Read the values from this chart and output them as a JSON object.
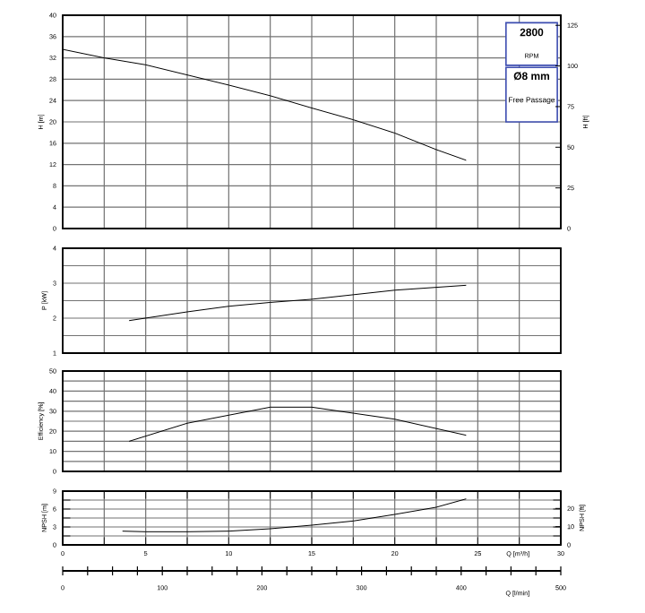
{
  "chart_data": [
    {
      "type": "line",
      "ylabel": "H [m]",
      "y2label": "H [ft]",
      "xlim": [
        0,
        30
      ],
      "ylim": [
        0,
        40
      ],
      "y2lim": [
        0,
        131.2
      ],
      "grid": true,
      "tick_labels": "y",
      "xticks": [
        {
          "value": 0,
          "label": null
        },
        {
          "value": 2.5,
          "label": null
        },
        {
          "value": 5,
          "label": null
        },
        {
          "value": 7.5,
          "label": null
        },
        {
          "value": 10,
          "label": null
        },
        {
          "value": 12.5,
          "label": null
        },
        {
          "value": 15,
          "label": null
        },
        {
          "value": 17.5,
          "label": null
        },
        {
          "value": 20,
          "label": null
        },
        {
          "value": 22.5,
          "label": null
        },
        {
          "value": 25,
          "label": null
        },
        {
          "value": 27.5,
          "label": null
        },
        {
          "value": 30,
          "label": null
        }
      ],
      "yticks": [
        0,
        4,
        8,
        12,
        16,
        20,
        24,
        28,
        32,
        36,
        40
      ],
      "y2ticks": [
        0,
        25,
        50,
        75,
        100,
        125
      ],
      "annotations": [
        "2800",
        "RPM",
        "Ø8 mm",
        "Free Passage"
      ],
      "series": [
        {
          "color": "#000000",
          "x": [
            0,
            2.5,
            5,
            7.5,
            10,
            12.5,
            15,
            17.5,
            20,
            22.5,
            24.3
          ],
          "values": [
            33.6,
            32.0,
            30.7,
            28.8,
            26.9,
            24.9,
            22.6,
            20.4,
            17.9,
            14.8,
            12.8
          ]
        }
      ]
    },
    {
      "type": "line",
      "ylabel": "P [kW]",
      "xlim": [
        0,
        30
      ],
      "ylim": [
        1,
        4
      ],
      "grid": true,
      "tick_labels": "y",
      "xticks": [
        {
          "value": 0,
          "label": null
        },
        {
          "value": 2.5,
          "label": null
        },
        {
          "value": 5,
          "label": null
        },
        {
          "value": 7.5,
          "label": null
        },
        {
          "value": 10,
          "label": null
        },
        {
          "value": 12.5,
          "label": null
        },
        {
          "value": 15,
          "label": null
        },
        {
          "value": 17.5,
          "label": null
        },
        {
          "value": 20,
          "label": null
        },
        {
          "value": 22.5,
          "label": null
        },
        {
          "value": 25,
          "label": null
        },
        {
          "value": 27.5,
          "label": null
        },
        {
          "value": 30,
          "label": null
        }
      ],
      "yticks": [
        1,
        {
          "value": 1.5,
          "label": null
        },
        2,
        {
          "value": 2.5,
          "label": null
        },
        3,
        {
          "value": 3.5,
          "label": null
        },
        4
      ],
      "series": [
        {
          "color": "#000000",
          "x": [
            4,
            7.5,
            10,
            12.5,
            15,
            17.5,
            20,
            24.3
          ],
          "values": [
            1.93,
            2.18,
            2.34,
            2.45,
            2.54,
            2.67,
            2.8,
            2.94
          ]
        }
      ]
    },
    {
      "type": "line",
      "ylabel": "Efficiency [%]",
      "xlim": [
        0,
        30
      ],
      "ylim": [
        0,
        50
      ],
      "grid": true,
      "tick_labels": "y",
      "xticks": [
        {
          "value": 0,
          "label": null
        },
        {
          "value": 2.5,
          "label": null
        },
        {
          "value": 5,
          "label": null
        },
        {
          "value": 7.5,
          "label": null
        },
        {
          "value": 10,
          "label": null
        },
        {
          "value": 12.5,
          "label": null
        },
        {
          "value": 15,
          "label": null
        },
        {
          "value": 17.5,
          "label": null
        },
        {
          "value": 20,
          "label": null
        },
        {
          "value": 22.5,
          "label": null
        },
        {
          "value": 25,
          "label": null
        },
        {
          "value": 27.5,
          "label": null
        },
        {
          "value": 30,
          "label": null
        }
      ],
      "yticks": [
        0,
        {
          "value": 5,
          "label": null
        },
        10,
        {
          "value": 15,
          "label": null
        },
        20,
        {
          "value": 25,
          "label": null
        },
        30,
        {
          "value": 35,
          "label": null
        },
        40,
        {
          "value": 45,
          "label": null
        },
        50
      ],
      "series": [
        {
          "color": "#000000",
          "x": [
            4,
            7.5,
            10,
            12.5,
            15,
            17.5,
            20,
            24.3
          ],
          "values": [
            15,
            24,
            28,
            32,
            32,
            29,
            26,
            18
          ]
        }
      ]
    },
    {
      "type": "line",
      "ylabel": "NPSH [m]",
      "y2label": "NPSH [ft]",
      "xlabel": "Q [m³/h]",
      "x2label": "Q [l/min]",
      "xlim": [
        0,
        30
      ],
      "ylim": [
        0,
        9
      ],
      "y2lim": [
        0,
        29.5
      ],
      "x2lim": [
        0,
        500
      ],
      "grid": true,
      "xticks": [
        0,
        {
          "value": 2.5,
          "label": null
        },
        5,
        {
          "value": 7.5,
          "label": null
        },
        10,
        {
          "value": 12.5,
          "label": null
        },
        15,
        {
          "value": 17.5,
          "label": null
        },
        20,
        {
          "value": 22.5,
          "label": null
        },
        25,
        {
          "value": 27.5,
          "label": null
        },
        30
      ],
      "yticks": [
        0,
        {
          "value": 1.5,
          "label": null
        },
        3,
        {
          "value": 4.5,
          "label": null
        },
        6,
        {
          "value": 7.5,
          "label": null
        },
        9
      ],
      "y2ticks": [
        0,
        10,
        20
      ],
      "x2ticks": [
        0,
        {
          "value": 25,
          "label": null
        },
        {
          "value": 50,
          "label": null
        },
        {
          "value": 75,
          "label": null
        },
        100,
        {
          "value": 125,
          "label": null
        },
        {
          "value": 150,
          "label": null
        },
        {
          "value": 175,
          "label": null
        },
        200,
        {
          "value": 225,
          "label": null
        },
        {
          "value": 250,
          "label": null
        },
        {
          "value": 275,
          "label": null
        },
        300,
        {
          "value": 325,
          "label": null
        },
        {
          "value": 350,
          "label": null
        },
        {
          "value": 375,
          "label": null
        },
        400,
        {
          "value": 425,
          "label": null
        },
        {
          "value": 450,
          "label": null
        },
        {
          "value": 475,
          "label": null
        },
        500
      ],
      "series": [
        {
          "color": "#000000",
          "x": [
            3.6,
            5,
            7.5,
            10,
            12.5,
            15,
            17.5,
            20,
            22.5,
            24.3
          ],
          "values": [
            2.3,
            2.2,
            2.2,
            2.3,
            2.7,
            3.3,
            4.0,
            5.1,
            6.3,
            7.7
          ]
        }
      ]
    }
  ]
}
